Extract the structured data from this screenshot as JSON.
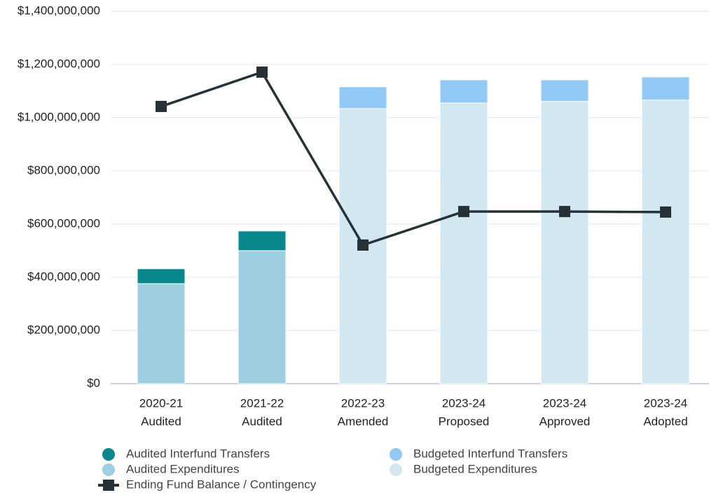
{
  "chart_data": {
    "type": "bar",
    "categories": [
      [
        "2020-21",
        "Audited"
      ],
      [
        "2021-22",
        "Audited"
      ],
      [
        "2022-23",
        "Amended"
      ],
      [
        "2023-24",
        "Proposed"
      ],
      [
        "2023-24",
        "Approved"
      ],
      [
        "2023-24",
        "Adopted"
      ]
    ],
    "series": [
      {
        "name": "Audited Interfund Transfers",
        "color": "#0a878c",
        "type": "bar",
        "values": [
          56000000,
          74000000,
          null,
          null,
          null,
          null
        ]
      },
      {
        "name": "Audited Expenditures",
        "color": "#9ecfe0",
        "type": "bar",
        "values": [
          376000000,
          500000000,
          null,
          null,
          null,
          null
        ]
      },
      {
        "name": "Budgeted Interfund Transfers",
        "color": "#92c9f5",
        "type": "bar",
        "values": [
          null,
          null,
          82000000,
          87000000,
          81000000,
          87000000
        ]
      },
      {
        "name": "Budgeted Expenditures",
        "color": "#d3e7f0",
        "type": "bar",
        "values": [
          null,
          null,
          1034000000,
          1055000000,
          1061000000,
          1066000000
        ]
      },
      {
        "name": "Ending Fund Balance / Contingency",
        "color": "#263238",
        "type": "line",
        "values": [
          1042000000,
          1171000000,
          521000000,
          647000000,
          647000000,
          645000000
        ]
      }
    ],
    "ylim": [
      0,
      1400000000
    ],
    "yticks": [
      {
        "value": 0,
        "label": "$0"
      },
      {
        "value": 200000000,
        "label": "$200,000,000"
      },
      {
        "value": 400000000,
        "label": "$400,000,000"
      },
      {
        "value": 600000000,
        "label": "$600,000,000"
      },
      {
        "value": 800000000,
        "label": "$800,000,000"
      },
      {
        "value": 1000000000,
        "label": "$1,000,000,000"
      },
      {
        "value": 1200000000,
        "label": "$1,200,000,000"
      },
      {
        "value": 1400000000,
        "label": "$1,400,000,000"
      }
    ],
    "grid": true
  }
}
